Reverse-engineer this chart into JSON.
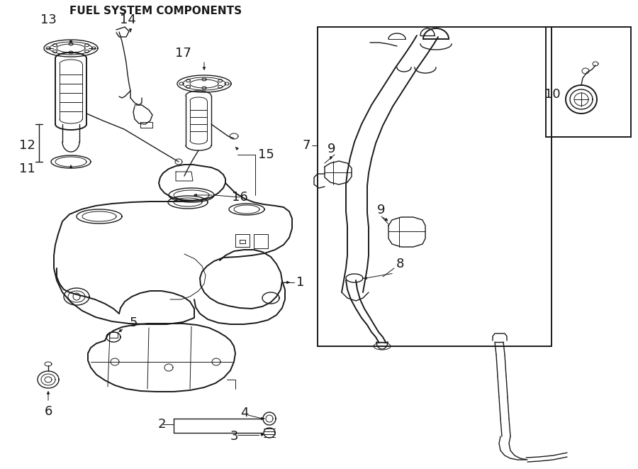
{
  "title": "FUEL SYSTEM COMPONENTS",
  "bg_color": "#ffffff",
  "line_color": "#1a1a1a",
  "title_fontsize": 11,
  "label_fontsize": 13,
  "arrow_fontsize": 11
}
